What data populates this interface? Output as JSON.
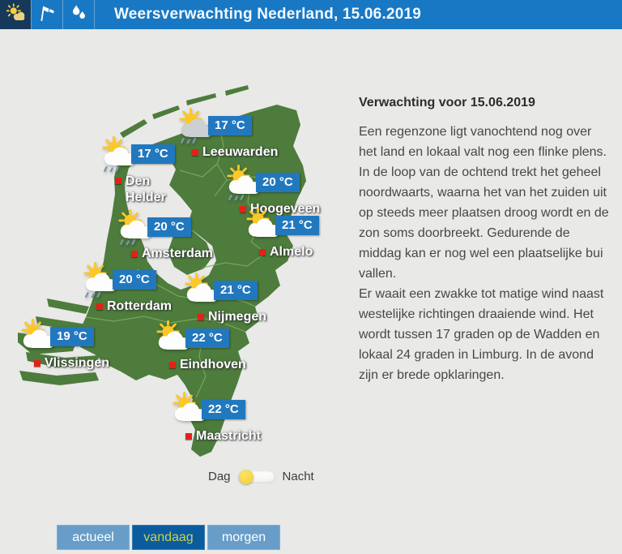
{
  "header": {
    "title": "Weersverwachting Nederland, 15.06.2019",
    "tabs": [
      {
        "icon": "sun-cloud-icon",
        "meaning": "weather forecast view",
        "active": true
      },
      {
        "icon": "windsock-icon",
        "meaning": "wind view",
        "active": false
      },
      {
        "icon": "raindrops-icon",
        "meaning": "precipitation view",
        "active": false
      }
    ]
  },
  "map": {
    "country": "Nederland",
    "cities": [
      {
        "name": "Leeuwarden",
        "temp": "17 °C",
        "icon": "gray-cloud-rain"
      },
      {
        "name": "Den Helder",
        "temp": "17 °C",
        "icon": "sun-cloud-rain"
      },
      {
        "name": "Hoogeveen",
        "temp": "20 °C",
        "icon": "sun-cloud-rain"
      },
      {
        "name": "Amsterdam",
        "temp": "20 °C",
        "icon": "sun-cloud-rain"
      },
      {
        "name": "Almelo",
        "temp": "21 °C",
        "icon": "sun-cloud"
      },
      {
        "name": "Rotterdam",
        "temp": "20 °C",
        "icon": "sun-cloud-rain"
      },
      {
        "name": "Nijmegen",
        "temp": "21 °C",
        "icon": "sun-cloud"
      },
      {
        "name": "Vlissingen",
        "temp": "19 °C",
        "icon": "sun-cloud"
      },
      {
        "name": "Eindhoven",
        "temp": "22 °C",
        "icon": "sun-cloud"
      },
      {
        "name": "Maastricht",
        "temp": "22 °C",
        "icon": "sun-cloud"
      }
    ]
  },
  "forecast": {
    "heading": "Verwachting voor 15.06.2019",
    "paragraph1": "Een regenzone ligt vanochtend nog over het land en lokaal valt nog een flinke plens. In de loop van de ochtend trekt het geheel noordwaarts, waarna het van het zuiden uit op steeds meer plaatsen droog wordt en de zon soms doorbreekt. Gedurende de middag kan er nog wel een plaatselijke bui vallen.",
    "paragraph2": "Er waait een zwakke tot matige wind naast westelijke richtingen draaiende wind. Het wordt tussen 17 graden op de Wadden en lokaal 24 graden in Limburg. In de avond zijn er brede opklaringen."
  },
  "toggle": {
    "day_label": "Dag",
    "night_label": "Nacht",
    "state": "day"
  },
  "footer": {
    "buttons": [
      {
        "label": "actueel",
        "active": false
      },
      {
        "label": "vandaag",
        "active": true
      },
      {
        "label": "morgen",
        "active": false
      }
    ]
  },
  "colors": {
    "header_blue": "#1878c4",
    "active_tab_navy": "#16395b",
    "badge_blue": "#2278be",
    "map_green": "#4d7c3c",
    "province_border_green": "#7fae62",
    "background_gray": "#e9e9e8",
    "button_blue": "#679dc8",
    "button_active_blue": "#0a5c9e",
    "button_active_text": "#c9d052",
    "marker_red": "#e32119",
    "sun_yellow": "#fcc727",
    "toggle_knob_yellow": "#f3cd2e"
  }
}
